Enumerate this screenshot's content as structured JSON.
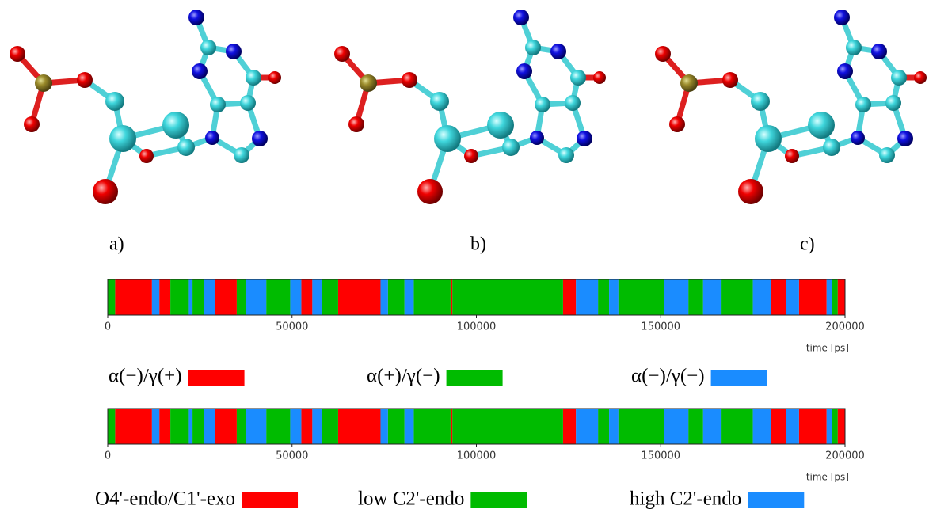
{
  "panels": [
    "a)",
    "b)",
    "c)"
  ],
  "chart_data": [
    {
      "type": "timeline",
      "xlim": [
        0,
        200000
      ],
      "xticks": [
        0,
        50000,
        100000,
        150000,
        200000
      ],
      "xlabel": "time [ps]",
      "series": [
        {
          "name": "α(−)/γ(+)",
          "color": "#ff0000",
          "segments": [
            [
              2000,
              12000
            ],
            [
              14000,
              17000
            ],
            [
              29000,
              35000
            ],
            [
              52500,
              55500
            ],
            [
              62500,
              74000
            ],
            [
              93000,
              93500
            ],
            [
              123500,
              127000
            ],
            [
              180000,
              184000
            ],
            [
              187500,
              195000
            ],
            [
              198000,
              200000
            ]
          ]
        },
        {
          "name": "α(+)/γ(−)",
          "color": "#00bb00",
          "segments": [
            [
              0,
              2000
            ],
            [
              17000,
              22000
            ],
            [
              23000,
              26000
            ],
            [
              35000,
              37500
            ],
            [
              43000,
              49500
            ],
            [
              58000,
              62500
            ],
            [
              76000,
              80500
            ],
            [
              83000,
              93000
            ],
            [
              93500,
              123500
            ],
            [
              133000,
              136000
            ],
            [
              138500,
              151000
            ],
            [
              157500,
              161500
            ],
            [
              166500,
              175000
            ],
            [
              196500,
              198000
            ]
          ]
        },
        {
          "name": "α(−)/γ(−)",
          "color": "#1a8cff",
          "segments": [
            [
              12000,
              14000
            ],
            [
              22000,
              23000
            ],
            [
              26000,
              29000
            ],
            [
              37500,
              43000
            ],
            [
              49500,
              52500
            ],
            [
              55500,
              58000
            ],
            [
              74000,
              76000
            ],
            [
              80500,
              83000
            ],
            [
              127000,
              133000
            ],
            [
              136000,
              138500
            ],
            [
              151000,
              157500
            ],
            [
              161500,
              166500
            ],
            [
              175000,
              180000
            ],
            [
              184000,
              187500
            ],
            [
              195000,
              196500
            ]
          ]
        }
      ]
    },
    {
      "type": "timeline",
      "xlim": [
        0,
        200000
      ],
      "xticks": [
        0,
        50000,
        100000,
        150000,
        200000
      ],
      "xlabel": "time [ps]",
      "series": [
        {
          "name": "O4'-endo/C1'-exo",
          "color": "#ff0000",
          "segments": [
            [
              2000,
              12000
            ],
            [
              14000,
              17000
            ],
            [
              29000,
              35000
            ],
            [
              52500,
              55500
            ],
            [
              62500,
              74000
            ],
            [
              93000,
              93500
            ],
            [
              123500,
              127000
            ],
            [
              180000,
              184000
            ],
            [
              187500,
              195000
            ],
            [
              198000,
              200000
            ]
          ]
        },
        {
          "name": "low C2'-endo",
          "color": "#00bb00",
          "segments": [
            [
              0,
              2000
            ],
            [
              17000,
              22000
            ],
            [
              23000,
              26000
            ],
            [
              35000,
              37500
            ],
            [
              43000,
              49500
            ],
            [
              58000,
              62500
            ],
            [
              76000,
              80500
            ],
            [
              83000,
              93000
            ],
            [
              93500,
              123500
            ],
            [
              133000,
              136000
            ],
            [
              138500,
              151000
            ],
            [
              157500,
              161500
            ],
            [
              166500,
              175000
            ],
            [
              196500,
              198000
            ]
          ]
        },
        {
          "name": "high C2'-endo",
          "color": "#1a8cff",
          "segments": [
            [
              12000,
              14000
            ],
            [
              22000,
              23000
            ],
            [
              26000,
              29000
            ],
            [
              37500,
              43000
            ],
            [
              49500,
              52500
            ],
            [
              55500,
              58000
            ],
            [
              74000,
              76000
            ],
            [
              80500,
              83000
            ],
            [
              127000,
              133000
            ],
            [
              136000,
              138500
            ],
            [
              151000,
              157500
            ],
            [
              161500,
              166500
            ],
            [
              175000,
              180000
            ],
            [
              184000,
              187500
            ],
            [
              195000,
              196500
            ]
          ]
        }
      ]
    }
  ]
}
